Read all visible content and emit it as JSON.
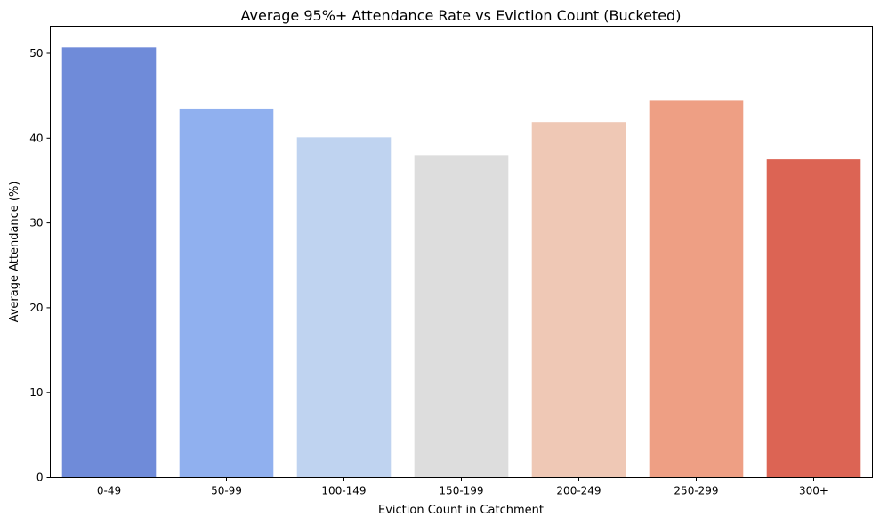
{
  "chart_data": {
    "type": "bar",
    "title": "Average 95%+ Attendance Rate vs Eviction Count (Bucketed)",
    "xlabel": "Eviction Count in Catchment",
    "ylabel": "Average Attendance (%)",
    "categories": [
      "0-49",
      "50-99",
      "100-149",
      "150-199",
      "200-249",
      "250-299",
      "300+"
    ],
    "values": [
      50.7,
      43.5,
      40.1,
      38.0,
      41.9,
      44.5,
      37.5
    ],
    "colors": [
      "#6f8bd9",
      "#90b0ef",
      "#bfd3f0",
      "#dddddd",
      "#efc8b5",
      "#ee9f84",
      "#dc6454"
    ],
    "ylim": [
      0,
      53.2
    ],
    "yticks": [
      0,
      10,
      20,
      30,
      40,
      50
    ],
    "grid": false,
    "legend": "none"
  }
}
